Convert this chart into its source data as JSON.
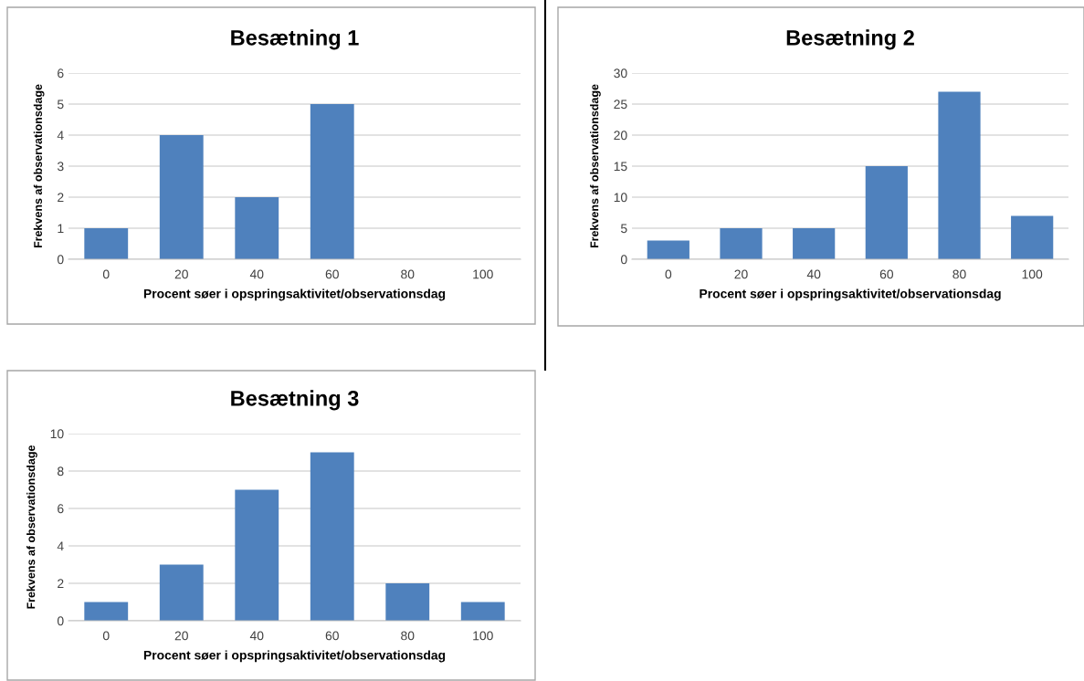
{
  "chart_data": [
    {
      "type": "bar",
      "title": "Besætning 1",
      "xlabel": "Procent søer i opspringsaktivitet/observationsdag",
      "ylabel": "Frekvens af observationsdage",
      "categories": [
        "0",
        "20",
        "40",
        "60",
        "80",
        "100"
      ],
      "values": [
        1,
        4,
        2,
        5,
        0,
        0
      ],
      "color": "#4f81bd",
      "ylim": [
        0,
        6
      ],
      "yticks": [
        0,
        1,
        2,
        3,
        4,
        5,
        6
      ],
      "grid": "y"
    },
    {
      "type": "bar",
      "title": "Besætning 2",
      "xlabel": "Procent søer i opspringsaktivitet/observationsdag",
      "ylabel": "Frekvens af observationsdage",
      "categories": [
        "0",
        "20",
        "40",
        "60",
        "80",
        "100"
      ],
      "values": [
        3,
        5,
        5,
        15,
        27,
        7
      ],
      "color": "#4f81bd",
      "ylim": [
        0,
        30
      ],
      "yticks": [
        0,
        5,
        10,
        15,
        20,
        25,
        30
      ],
      "grid": "y"
    },
    {
      "type": "bar",
      "title": "Besætning 3",
      "xlabel": "Procent søer i opspringsaktivitet/observationsdag",
      "ylabel": "Frekvens af observationsdage",
      "categories": [
        "0",
        "20",
        "40",
        "60",
        "80",
        "100"
      ],
      "values": [
        1,
        3,
        7,
        9,
        2,
        1
      ],
      "color": "#4f81bd",
      "ylim": [
        0,
        10
      ],
      "yticks": [
        0,
        2,
        4,
        6,
        8,
        10
      ],
      "grid": "y"
    }
  ]
}
